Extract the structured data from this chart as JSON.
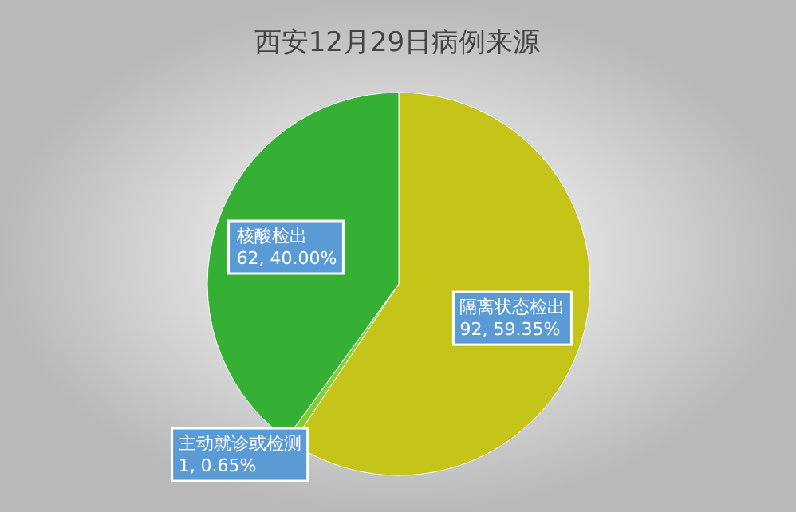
{
  "chart_data": {
    "type": "pie",
    "title": "西安12月29日病例来源",
    "categories": [
      "隔离状态检出",
      "主动就诊或检测",
      "核酸检出"
    ],
    "values": [
      92,
      1,
      62
    ],
    "value_labels": [
      "92, 59.35%",
      "1, 0.65%",
      "62, 40.00%"
    ],
    "colors": [
      "#c5c419",
      "#7fcf3a",
      "#35b035"
    ]
  }
}
